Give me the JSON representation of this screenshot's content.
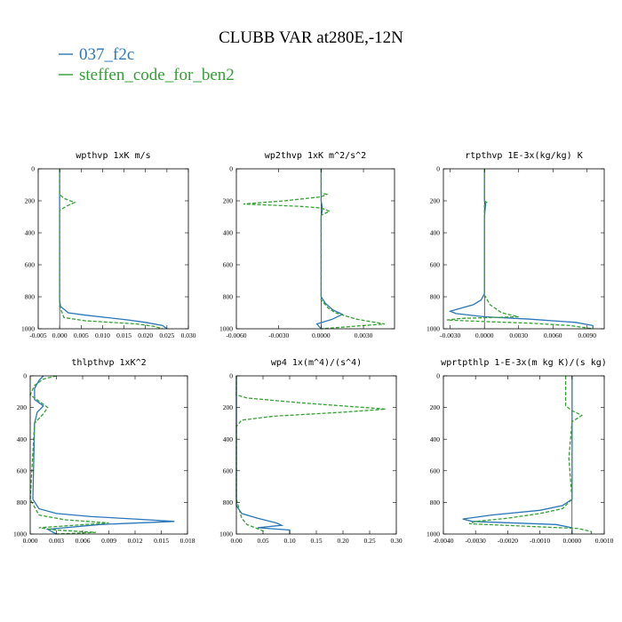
{
  "title": "CLUBB VAR at280E,-12N",
  "legend": [
    {
      "label": "037_f2c",
      "color": "#2b76b8",
      "dash": "solid"
    },
    {
      "label": "steffen_code_for_ben2",
      "color": "#33a033",
      "dash": "dashed"
    }
  ],
  "chart_data": [
    {
      "type": "line",
      "title": "wpthvp  1xK m/s",
      "xlim": [
        -0.005,
        0.03
      ],
      "xticks": [
        -0.005,
        0.0,
        0.005,
        0.01,
        0.015,
        0.02,
        0.025,
        0.03
      ],
      "xtick_labels": [
        "-0.005",
        "0.000",
        "0.005",
        "0.010",
        "0.015",
        "0.020",
        "0.025",
        "0.030"
      ],
      "ylim": [
        0,
        1000
      ],
      "y_inverted": true,
      "yticks": [
        0,
        200,
        400,
        600,
        800,
        1000
      ],
      "series": [
        {
          "name": "037_f2c",
          "points": [
            [
              0.0,
              0
            ],
            [
              0.0,
              820
            ],
            [
              0.0002,
              860
            ],
            [
              0.002,
              900
            ],
            [
              0.006,
              915
            ],
            [
              0.011,
              930
            ],
            [
              0.016,
              945
            ],
            [
              0.02,
              960
            ],
            [
              0.024,
              980
            ],
            [
              0.025,
              1000
            ]
          ]
        },
        {
          "name": "steffen_code_for_ben2",
          "points": [
            [
              0.0,
              0
            ],
            [
              0.0,
              160
            ],
            [
              0.001,
              185
            ],
            [
              0.0035,
              210
            ],
            [
              0.0015,
              235
            ],
            [
              0.0,
              260
            ],
            [
              0.0,
              860
            ],
            [
              0.001,
              930
            ],
            [
              0.006,
              950
            ],
            [
              0.012,
              960
            ],
            [
              0.018,
              970
            ],
            [
              0.022,
              985
            ],
            [
              0.024,
              1000
            ]
          ]
        }
      ]
    },
    {
      "type": "line",
      "title": "wp2thvp  1xK m^2/s^2",
      "xlim": [
        -0.006,
        0.0052
      ],
      "xticks": [
        -0.006,
        -0.003,
        0.0,
        0.003
      ],
      "xtick_labels": [
        "-0.0060",
        "-0.0030",
        "0.0000",
        "0.0030"
      ],
      "ylim": [
        0,
        1000
      ],
      "y_inverted": true,
      "yticks": [
        0,
        200,
        400,
        600,
        800,
        1000
      ],
      "series": [
        {
          "name": "037_f2c",
          "points": [
            [
              0.0,
              0
            ],
            [
              0.0,
              200
            ],
            [
              0.0001,
              250
            ],
            [
              0.0,
              300
            ],
            [
              0.0,
              800
            ],
            [
              0.0003,
              840
            ],
            [
              0.0008,
              880
            ],
            [
              0.0015,
              910
            ],
            [
              0.0008,
              940
            ],
            [
              -0.0003,
              970
            ],
            [
              0.0,
              1000
            ]
          ]
        },
        {
          "name": "steffen_code_for_ben2",
          "points": [
            [
              0.0,
              0
            ],
            [
              0.0,
              150
            ],
            [
              0.0004,
              160
            ],
            [
              0.0,
              175
            ],
            [
              -0.0026,
              200
            ],
            [
              -0.0055,
              220
            ],
            [
              -0.0014,
              235
            ],
            [
              0.0,
              245
            ],
            [
              0.0006,
              265
            ],
            [
              0.0,
              290
            ],
            [
              0.0,
              820
            ],
            [
              0.0005,
              870
            ],
            [
              0.001,
              900
            ],
            [
              0.0025,
              940
            ],
            [
              0.0045,
              970
            ],
            [
              0.0015,
              990
            ],
            [
              0.0,
              1000
            ]
          ]
        }
      ]
    },
    {
      "type": "line",
      "title": "rtpthvp  1E-3x(kg/kg) K",
      "xlim": [
        -0.0036,
        0.0105
      ],
      "xticks": [
        -0.003,
        0.0,
        0.003,
        0.006,
        0.009
      ],
      "xtick_labels": [
        "-0.0030",
        "0.0000",
        "0.0030",
        "0.0060",
        "0.0090"
      ],
      "ylim": [
        0,
        1000
      ],
      "y_inverted": true,
      "yticks": [
        0,
        200,
        400,
        600,
        800,
        1000
      ],
      "series": [
        {
          "name": "037_f2c",
          "points": [
            [
              0.0,
              0
            ],
            [
              0.0,
              200
            ],
            [
              0.0001,
              220
            ],
            [
              0.0,
              300
            ],
            [
              0.0,
              780
            ],
            [
              -0.0003,
              820
            ],
            [
              -0.001,
              850
            ],
            [
              -0.002,
              870
            ],
            [
              -0.003,
              890
            ],
            [
              -0.0025,
              905
            ],
            [
              0.0,
              925
            ],
            [
              0.004,
              940
            ],
            [
              0.008,
              960
            ],
            [
              0.0095,
              980
            ],
            [
              0.0095,
              1000
            ]
          ]
        },
        {
          "name": "steffen_code_for_ben2",
          "points": [
            [
              0.0,
              0
            ],
            [
              0.0,
              200
            ],
            [
              0.0002,
              210
            ],
            [
              0.0,
              230
            ],
            [
              0.0,
              790
            ],
            [
              0.0005,
              850
            ],
            [
              0.0015,
              900
            ],
            [
              0.003,
              925
            ],
            [
              -0.002,
              935
            ],
            [
              -0.0033,
              945
            ],
            [
              0.0,
              955
            ],
            [
              0.004,
              965
            ],
            [
              0.0075,
              980
            ],
            [
              0.0095,
              1000
            ]
          ]
        }
      ]
    },
    {
      "type": "line",
      "title": "thlpthvp  1xK^2",
      "xlim": [
        0.0,
        0.018
      ],
      "xticks": [
        0.0,
        0.003,
        0.006,
        0.009,
        0.012,
        0.015,
        0.018
      ],
      "xtick_labels": [
        "0.000",
        "0.003",
        "0.006",
        "0.009",
        "0.012",
        "0.015",
        "0.018"
      ],
      "ylim": [
        0,
        1000
      ],
      "y_inverted": true,
      "yticks": [
        0,
        200,
        400,
        600,
        800,
        1000
      ],
      "series": [
        {
          "name": "037_f2c",
          "points": [
            [
              0.0015,
              0
            ],
            [
              0.001,
              30
            ],
            [
              0.0005,
              80
            ],
            [
              0.0005,
              150
            ],
            [
              0.0015,
              190
            ],
            [
              0.0008,
              230
            ],
            [
              0.0005,
              300
            ],
            [
              0.0003,
              780
            ],
            [
              0.001,
              840
            ],
            [
              0.003,
              870
            ],
            [
              0.007,
              890
            ],
            [
              0.012,
              905
            ],
            [
              0.0165,
              920
            ],
            [
              0.008,
              940
            ],
            [
              0.004,
              960
            ],
            [
              0.002,
              970
            ],
            [
              0.003,
              1000
            ]
          ]
        },
        {
          "name": "steffen_code_for_ben2",
          "points": [
            [
              0.003,
              0
            ],
            [
              0.0015,
              20
            ],
            [
              0.0005,
              60
            ],
            [
              0.0,
              120
            ],
            [
              0.0015,
              180
            ],
            [
              0.002,
              200
            ],
            [
              0.0015,
              240
            ],
            [
              0.0005,
              300
            ],
            [
              0.0,
              780
            ],
            [
              0.001,
              880
            ],
            [
              0.004,
              910
            ],
            [
              0.009,
              930
            ],
            [
              0.005,
              945
            ],
            [
              0.001,
              960
            ],
            [
              0.003,
              975
            ],
            [
              0.0075,
              990
            ],
            [
              0.003,
              1000
            ]
          ]
        }
      ]
    },
    {
      "type": "line",
      "title": "wp4  1x(m^4)/(s^4)",
      "xlim": [
        0.0,
        0.3
      ],
      "xticks": [
        0.0,
        0.05,
        0.1,
        0.15,
        0.2,
        0.25,
        0.3
      ],
      "xtick_labels": [
        "0.00",
        "0.05",
        "0.10",
        "0.15",
        "0.20",
        "0.25",
        "0.30"
      ],
      "ylim": [
        0,
        1000
      ],
      "y_inverted": true,
      "yticks": [
        0,
        200,
        400,
        600,
        800,
        1000
      ],
      "series": [
        {
          "name": "037_f2c",
          "points": [
            [
              0.0,
              0
            ],
            [
              0.0,
              820
            ],
            [
              0.01,
              870
            ],
            [
              0.04,
              900
            ],
            [
              0.075,
              930
            ],
            [
              0.085,
              945
            ],
            [
              0.04,
              960
            ],
            [
              0.1,
              975
            ],
            [
              0.1,
              1000
            ]
          ]
        },
        {
          "name": "steffen_code_for_ben2",
          "points": [
            [
              0.0,
              0
            ],
            [
              0.0,
              120
            ],
            [
              0.02,
              140
            ],
            [
              0.12,
              170
            ],
            [
              0.22,
              195
            ],
            [
              0.28,
              210
            ],
            [
              0.2,
              230
            ],
            [
              0.07,
              255
            ],
            [
              0.01,
              280
            ],
            [
              0.0,
              320
            ],
            [
              0.0,
              780
            ],
            [
              0.01,
              900
            ],
            [
              0.02,
              940
            ],
            [
              0.035,
              960
            ],
            [
              0.05,
              980
            ],
            [
              0.05,
              1000
            ]
          ]
        }
      ]
    },
    {
      "type": "line",
      "title": "wprtpthlp  1-E-3x(m kg K)/(s kg)",
      "xlim": [
        -0.004,
        0.001
      ],
      "xticks": [
        -0.004,
        -0.003,
        -0.002,
        -0.001,
        0.0,
        0.001
      ],
      "xtick_labels": [
        "-0.0040",
        "-0.0030",
        "-0.0020",
        "-0.0010",
        "0.0000",
        "0.0010"
      ],
      "ylim": [
        0,
        1000
      ],
      "y_inverted": true,
      "yticks": [
        0,
        200,
        400,
        600,
        800,
        1000
      ],
      "series": [
        {
          "name": "037_f2c",
          "points": [
            [
              0.0,
              0
            ],
            [
              0.0,
              780
            ],
            [
              -0.0003,
              820
            ],
            [
              -0.001,
              850
            ],
            [
              -0.0025,
              880
            ],
            [
              -0.0034,
              905
            ],
            [
              -0.0031,
              920
            ],
            [
              -0.0005,
              940
            ],
            [
              0.0,
              960
            ],
            [
              0.0,
              1000
            ]
          ]
        },
        {
          "name": "steffen_code_for_ben2",
          "points": [
            [
              -0.0002,
              0
            ],
            [
              -0.0002,
              190
            ],
            [
              0.0,
              220
            ],
            [
              0.0003,
              250
            ],
            [
              0.0,
              290
            ],
            [
              -0.0001,
              520
            ],
            [
              0.0,
              780
            ],
            [
              -0.0003,
              840
            ],
            [
              -0.001,
              870
            ],
            [
              -0.002,
              900
            ],
            [
              -0.003,
              920
            ],
            [
              -0.0032,
              935
            ],
            [
              -0.0015,
              950
            ],
            [
              0.0002,
              965
            ],
            [
              0.0006,
              985
            ],
            [
              0.0006,
              1000
            ]
          ]
        }
      ]
    }
  ]
}
